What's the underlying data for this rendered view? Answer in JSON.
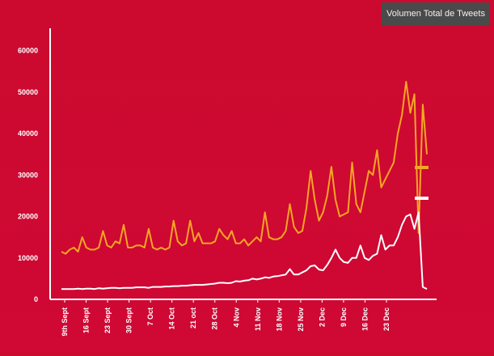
{
  "badge": {
    "label": "Volumen Total de Tweets"
  },
  "chart_data": {
    "type": "line",
    "title": "Volumen Total de Tweets",
    "xlabel": "",
    "ylabel": "",
    "ylim": [
      0,
      65000
    ],
    "yticks": [
      0,
      10000,
      20000,
      30000,
      40000,
      50000,
      60000
    ],
    "x_tick_labels": [
      "9th Sept",
      "16 Sept",
      "23 Sept",
      "30 Sept",
      "7 Oct",
      "14 Oct",
      "21 oct",
      "28 Oct",
      "4 Nov",
      "11 Nov",
      "18 Nov",
      "25 Nov",
      "2 Dec",
      "9 Dec",
      "16 Dec",
      "23 Dec"
    ],
    "grid": false,
    "legend": "right",
    "series": [
      {
        "color": "#f5a623",
        "values": [
          11500,
          11000,
          12000,
          12500,
          11500,
          15000,
          12500,
          12000,
          12000,
          12500,
          16500,
          13000,
          12500,
          14000,
          13500,
          18000,
          12500,
          12500,
          13000,
          13000,
          12500,
          17000,
          12500,
          12000,
          12500,
          12000,
          12500,
          19000,
          14000,
          13000,
          13500,
          19000,
          14000,
          16000,
          13500,
          13500,
          13500,
          14000,
          17000,
          15500,
          14500,
          16500,
          13500,
          13500,
          14500,
          13000,
          14000,
          15000,
          14000,
          21000,
          15000,
          14500,
          14500,
          15000,
          16500,
          23000,
          17500,
          16000,
          16500,
          22000,
          31000,
          24000,
          19000,
          21000,
          25000,
          32000,
          24000,
          20000,
          20500,
          21000,
          33000,
          23000,
          21000,
          26000,
          31000,
          30000,
          36000,
          27000,
          29000,
          31000,
          33000,
          40000,
          44500,
          52500,
          45000,
          49500,
          16000,
          47000,
          35000
        ],
        "approximate": true
      },
      {
        "color": "#ffffff",
        "values": [
          2500,
          2500,
          2500,
          2500,
          2600,
          2500,
          2600,
          2600,
          2500,
          2700,
          2600,
          2700,
          2800,
          2800,
          2700,
          2800,
          2800,
          2800,
          2900,
          2900,
          2900,
          2800,
          3000,
          3000,
          3000,
          3100,
          3100,
          3200,
          3200,
          3300,
          3300,
          3400,
          3500,
          3500,
          3500,
          3600,
          3700,
          3800,
          4000,
          4000,
          3900,
          4000,
          4400,
          4300,
          4500,
          4600,
          5000,
          4800,
          5000,
          5300,
          5200,
          5500,
          5600,
          5800,
          6000,
          7300,
          6000,
          6000,
          6500,
          7000,
          8000,
          8200,
          7200,
          7000,
          8300,
          10000,
          12000,
          10000,
          9000,
          8800,
          10000,
          10000,
          13000,
          10000,
          9500,
          10500,
          11000,
          15500,
          12000,
          13000,
          13000,
          15000,
          18000,
          20000,
          20500,
          17000,
          21000,
          3000,
          2500
        ],
        "approximate": true
      }
    ]
  }
}
